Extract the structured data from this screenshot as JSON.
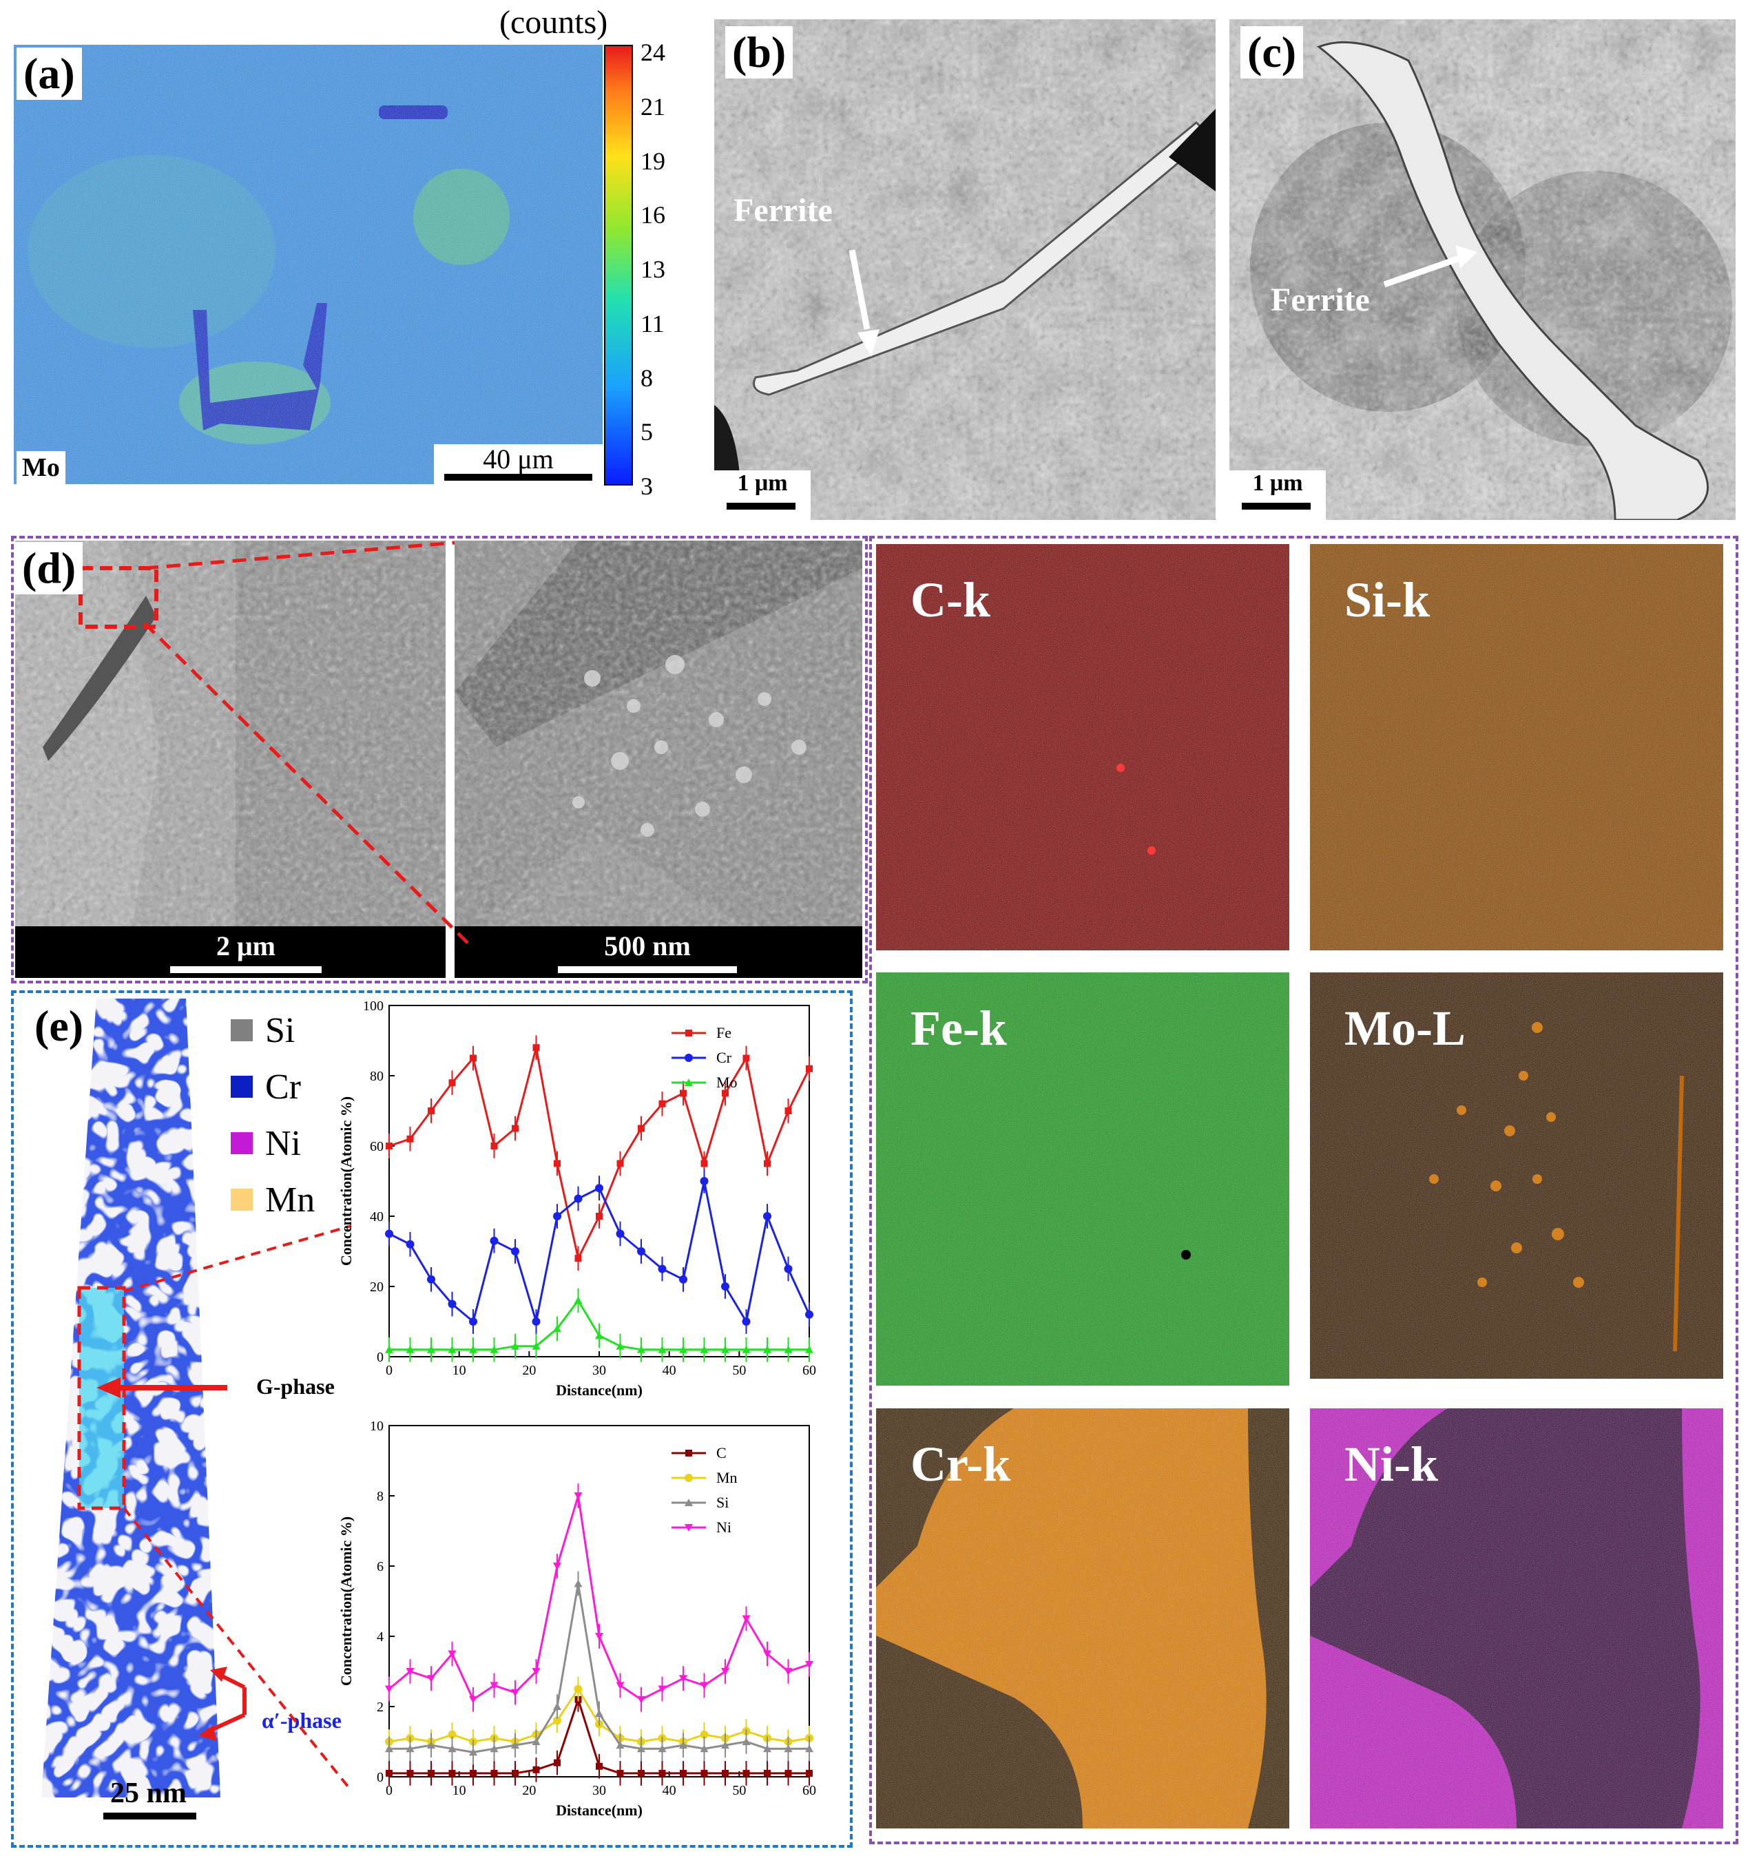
{
  "panel_a": {
    "label": "(a)",
    "colorbar_title": "(counts)",
    "colorbar_ticks": [
      "24",
      "21",
      "19",
      "16",
      "13",
      "11",
      "8",
      "5",
      "3"
    ],
    "element": "Mo",
    "scale": "40 μm",
    "colors": {
      "low": "#1a3cff",
      "mid": "#3aa8ff",
      "high": "#6dd36b"
    }
  },
  "panel_b": {
    "label": "(b)",
    "annotation": "Ferrite",
    "scale": "1 μm"
  },
  "panel_c": {
    "label": "(c)",
    "annotation": "Ferrite",
    "scale": "1 μm"
  },
  "panel_d": {
    "label": "(d)",
    "left_scale": "2 μm",
    "right_scale": "500 nm",
    "maps": [
      {
        "name": "C-k",
        "color": "#b00000"
      },
      {
        "name": "Si-k",
        "color": "#c46400"
      },
      {
        "name": "Fe-k",
        "color": "#22b022"
      },
      {
        "name": "Mo-L",
        "color": "#a35400"
      },
      {
        "name": "Cr-k",
        "color": "#e07b00"
      },
      {
        "name": "Ni-k",
        "color": "#c000c0"
      }
    ],
    "frame_color": "#8a4fb3"
  },
  "panel_e": {
    "label": "(e)",
    "legend": [
      {
        "name": "Si",
        "color": "#808080"
      },
      {
        "name": "Cr",
        "color": "#0b1fc4"
      },
      {
        "name": "Ni",
        "color": "#c21ad6"
      },
      {
        "name": "Mn",
        "color": "#ffd27a"
      }
    ],
    "gphase_label": "G-phase",
    "alpha_label": "α′-phase",
    "scale": "25 nm",
    "frame_color": "#1f7ac4"
  },
  "chart_data": [
    {
      "type": "line",
      "title": "",
      "xlabel": "Distance(nm)",
      "ylabel": "Concentration(Atomic %)",
      "xlim": [
        0,
        60
      ],
      "ylim": [
        0,
        100
      ],
      "xticks": [
        0,
        10,
        20,
        30,
        40,
        50,
        60
      ],
      "yticks": [
        0,
        20,
        40,
        60,
        80,
        100
      ],
      "legend": "top-right",
      "x": [
        0,
        3,
        6,
        9,
        12,
        15,
        18,
        21,
        24,
        27,
        30,
        33,
        36,
        39,
        42,
        45,
        48,
        51,
        54,
        57,
        60
      ],
      "series": [
        {
          "name": "Fe",
          "color": "#e81b1b",
          "values": [
            60,
            62,
            70,
            78,
            85,
            60,
            65,
            88,
            55,
            28,
            40,
            55,
            65,
            72,
            75,
            55,
            75,
            85,
            55,
            70,
            82
          ]
        },
        {
          "name": "Cr",
          "color": "#1b22e8",
          "values": [
            35,
            32,
            22,
            15,
            10,
            33,
            30,
            10,
            40,
            45,
            48,
            35,
            30,
            25,
            22,
            50,
            20,
            10,
            40,
            25,
            12
          ]
        },
        {
          "name": "Mo",
          "color": "#22e022",
          "values": [
            2,
            2,
            2,
            2,
            2,
            2,
            3,
            3,
            8,
            16,
            6,
            3,
            2,
            2,
            2,
            2,
            2,
            2,
            2,
            2,
            2
          ]
        }
      ]
    },
    {
      "type": "line",
      "title": "",
      "xlabel": "Distance(nm)",
      "ylabel": "Concentration(Atomic %)",
      "xlim": [
        0,
        60
      ],
      "ylim": [
        0,
        10
      ],
      "xticks": [
        0,
        10,
        20,
        30,
        40,
        50,
        60
      ],
      "yticks": [
        0,
        2,
        4,
        6,
        8,
        10
      ],
      "legend": "top-right",
      "x": [
        0,
        3,
        6,
        9,
        12,
        15,
        18,
        21,
        24,
        27,
        30,
        33,
        36,
        39,
        42,
        45,
        48,
        51,
        54,
        57,
        60
      ],
      "series": [
        {
          "name": "C",
          "color": "#8b0000",
          "values": [
            0.1,
            0.1,
            0.1,
            0.1,
            0.1,
            0.1,
            0.1,
            0.2,
            0.4,
            2.2,
            0.3,
            0.1,
            0.1,
            0.1,
            0.1,
            0.1,
            0.1,
            0.1,
            0.1,
            0.1,
            0.1
          ]
        },
        {
          "name": "Mn",
          "color": "#e8d21b",
          "values": [
            1.0,
            1.1,
            1.0,
            1.2,
            1.0,
            1.1,
            1.0,
            1.2,
            1.6,
            2.5,
            1.5,
            1.1,
            1.0,
            1.1,
            1.0,
            1.2,
            1.1,
            1.3,
            1.1,
            1.0,
            1.1
          ]
        },
        {
          "name": "Si",
          "color": "#8c8c8c",
          "values": [
            0.8,
            0.8,
            0.9,
            0.8,
            0.7,
            0.8,
            0.9,
            1.0,
            2.0,
            5.5,
            1.8,
            0.9,
            0.8,
            0.8,
            0.9,
            0.8,
            0.9,
            1.0,
            0.8,
            0.8,
            0.8
          ]
        },
        {
          "name": "Ni",
          "color": "#ff1bd6",
          "values": [
            2.5,
            3.0,
            2.8,
            3.5,
            2.2,
            2.6,
            2.4,
            3.0,
            6.0,
            8.0,
            4.0,
            2.6,
            2.2,
            2.5,
            2.8,
            2.6,
            3.0,
            4.5,
            3.5,
            3.0,
            3.2
          ]
        }
      ]
    }
  ]
}
